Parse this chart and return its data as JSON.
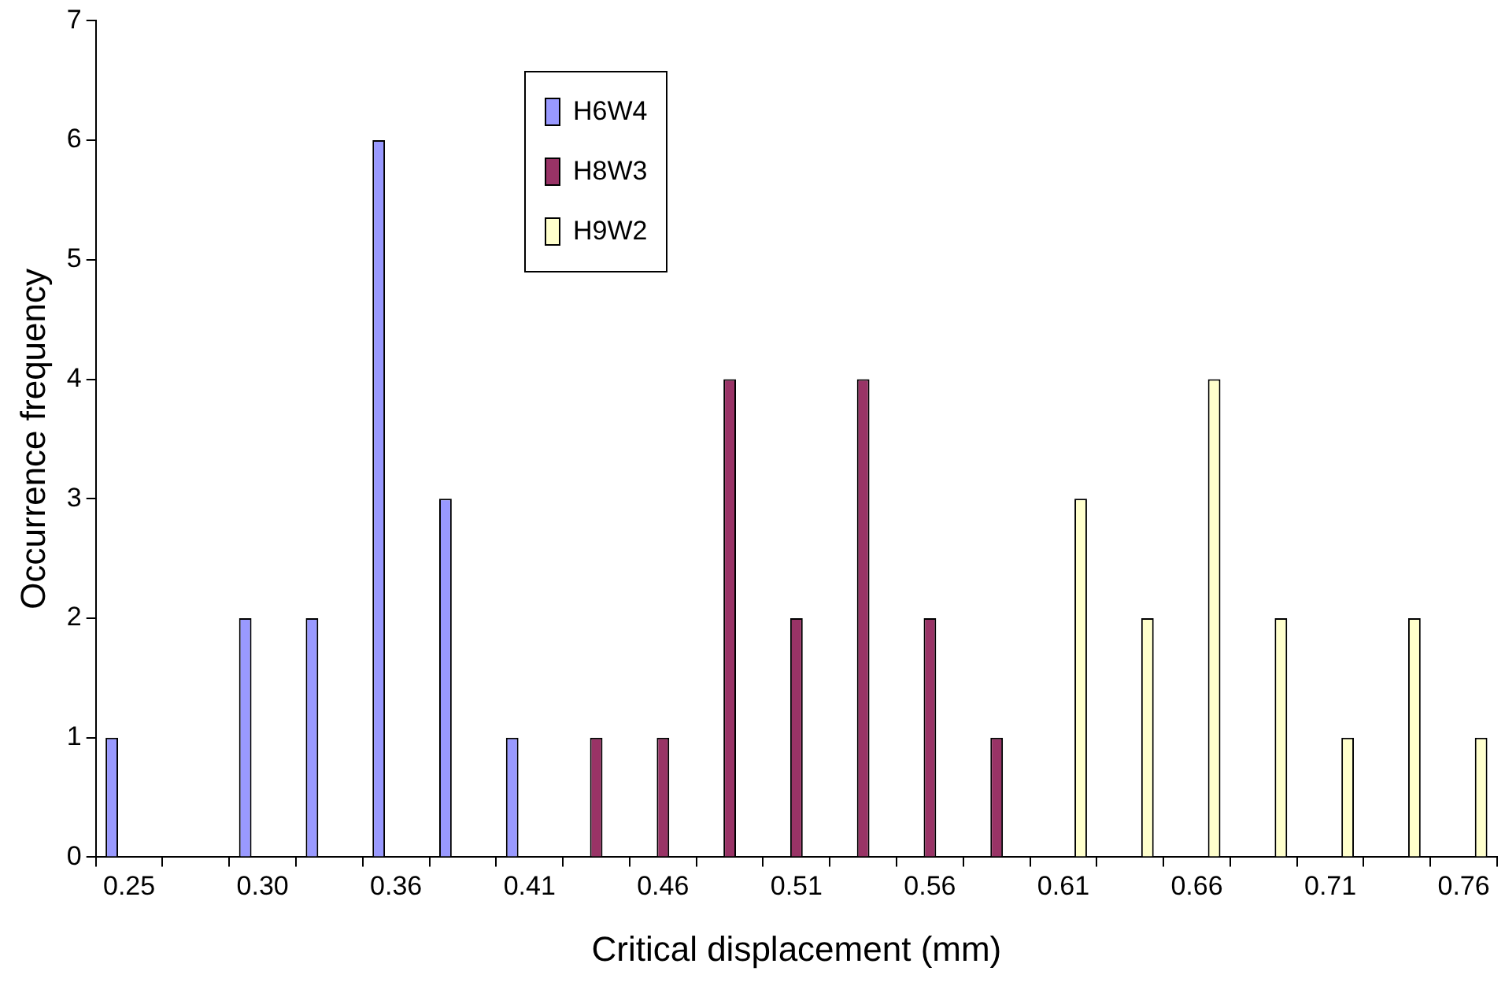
{
  "chart_data": {
    "type": "bar",
    "xlabel": "Critical displacement (mm)",
    "ylabel": "Occurrence frequency",
    "categories": [
      "0.25",
      null,
      "0.30",
      null,
      "0.36",
      null,
      "0.41",
      null,
      "0.46",
      null,
      "0.51",
      null,
      "0.56",
      null,
      "0.61",
      null,
      "0.66",
      null,
      "0.71",
      null,
      "0.76"
    ],
    "series": [
      {
        "name": "H6W4",
        "color": "#9999ff",
        "values": [
          1,
          null,
          2,
          2,
          6,
          3,
          1,
          null,
          null,
          null,
          null,
          null,
          null,
          null,
          null,
          null,
          null,
          null,
          null,
          null,
          null
        ]
      },
      {
        "name": "H8W3",
        "color": "#993366",
        "values": [
          null,
          null,
          null,
          null,
          null,
          null,
          null,
          1,
          1,
          4,
          2,
          4,
          2,
          1,
          null,
          null,
          null,
          null,
          null,
          null,
          null
        ]
      },
      {
        "name": "H9W2",
        "color": "#ffffcc",
        "values": [
          null,
          null,
          null,
          null,
          null,
          null,
          null,
          null,
          null,
          null,
          null,
          null,
          null,
          null,
          3,
          2,
          4,
          2,
          1,
          2,
          1
        ]
      }
    ],
    "ylim": [
      0,
      7
    ],
    "yticks": [
      0,
      1,
      2,
      3,
      4,
      5,
      6,
      7
    ],
    "grid": false,
    "legend": "top"
  }
}
